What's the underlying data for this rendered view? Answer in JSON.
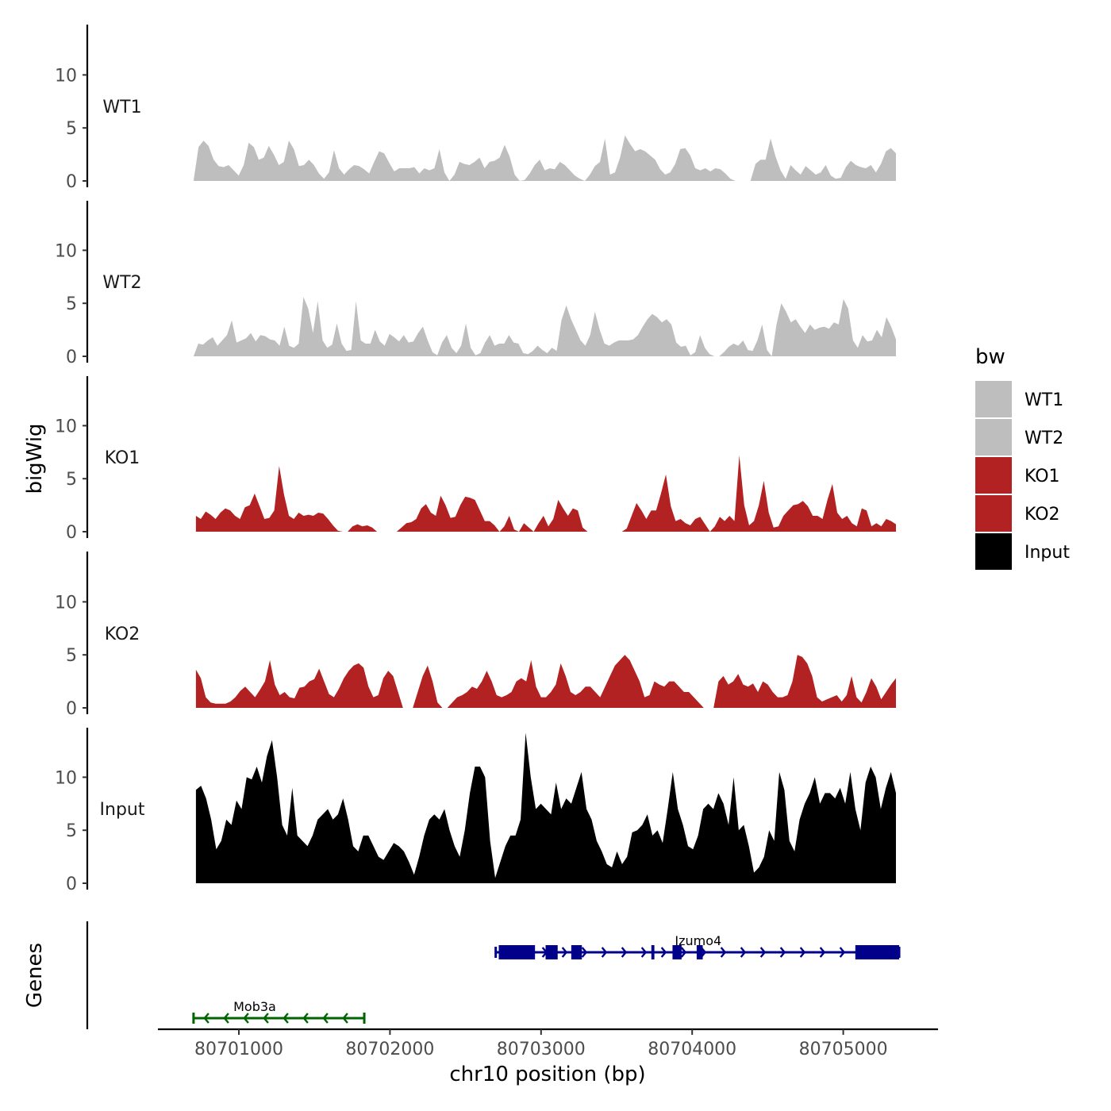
{
  "chart_data": {
    "type": "area",
    "title": "",
    "ylabel": "bigWig",
    "genes_label": "Genes",
    "xlabel": "chr10 position (bp)",
    "x_range": [
      80700700,
      80705370
    ],
    "xlim": [
      80700500,
      80705650
    ],
    "x_ticks": [
      80701000,
      80702000,
      80703000,
      80704000,
      80705000
    ],
    "x_tick_labels": [
      "80701000",
      "80702000",
      "80703000",
      "80704000",
      "80705000"
    ],
    "ylim": [
      0,
      14.6
    ],
    "y_ticks": [
      0,
      5,
      10
    ],
    "y_tick_labels": [
      "0",
      "5",
      "10"
    ],
    "legend": {
      "title": "bw",
      "position": "right",
      "entries": [
        {
          "name": "WT1",
          "color": "#bebebe"
        },
        {
          "name": "WT2",
          "color": "#bebebe"
        },
        {
          "name": "KO1",
          "color": "#b22222"
        },
        {
          "name": "KO2",
          "color": "#b22222"
        },
        {
          "name": "Input",
          "color": "#000000"
        }
      ]
    },
    "series": [
      {
        "name": "WT1",
        "color": "#bebebe",
        "values": [
          0,
          3.2,
          3.8,
          3.3,
          2.0,
          1.4,
          1.3,
          1.5,
          1.0,
          0.5,
          1.5,
          3.6,
          3.2,
          2.0,
          2.2,
          3.3,
          2.5,
          1.5,
          1.8,
          3.8,
          3.0,
          1.4,
          1.5,
          2.0,
          1.5,
          0.7,
          0.2,
          0.8,
          2.9,
          1.2,
          0.6,
          1.1,
          1.5,
          1.4,
          1.1,
          0.7,
          1.8,
          2.8,
          2.6,
          1.7,
          0.9,
          1.2,
          1.2,
          1.2,
          1.3,
          0.7,
          1.2,
          1.0,
          1.2,
          3.0,
          0.8,
          0.0,
          0.6,
          1.8,
          1.6,
          1.5,
          1.8,
          2.2,
          1.2,
          1.8,
          1.9,
          2.2,
          3.4,
          2.3,
          0.6,
          0.0,
          0.1,
          0.7,
          1.5,
          2.0,
          1.0,
          1.2,
          1.1,
          1.8,
          1.5,
          1.0,
          0.5,
          0.2,
          0.0,
          0.6,
          1.4,
          1.8,
          4.0,
          0.6,
          0.8,
          2.2,
          4.3,
          3.5,
          2.8,
          3.0,
          2.8,
          2.4,
          2.0,
          1.1,
          0.6,
          0.8,
          1.6,
          3.0,
          3.1,
          2.4,
          1.2,
          1.0,
          1.2,
          0.9,
          1.2,
          1.1,
          0.7,
          0.2,
          0.0,
          0.0,
          0.0,
          0.0,
          1.6,
          2.0,
          2.0,
          4.0,
          2.3,
          1.0,
          0.2,
          1.5,
          1.0,
          0.6,
          1.4,
          1.0,
          0.6,
          0.8,
          1.5,
          0.5,
          0.2,
          0.3,
          1.3,
          1.9,
          1.5,
          1.3,
          1.2,
          1.5,
          0.8,
          1.6,
          2.8,
          3.1,
          2.6
        ]
      },
      {
        "name": "WT2",
        "color": "#bebebe",
        "values": [
          0,
          1.2,
          1.1,
          1.5,
          1.8,
          1.0,
          1.5,
          2.0,
          3.4,
          1.3,
          1.5,
          1.7,
          2.2,
          1.4,
          2.0,
          1.9,
          1.6,
          1.5,
          1.0,
          2.8,
          1.0,
          0.8,
          1.2,
          5.6,
          4.5,
          2.2,
          5.2,
          1.5,
          0.8,
          1.1,
          3.1,
          1.2,
          0.5,
          0.6,
          5.2,
          1.5,
          1.2,
          1.2,
          2.5,
          1.4,
          1.0,
          2.1,
          1.8,
          1.4,
          2.0,
          1.3,
          1.4,
          2.2,
          2.8,
          1.5,
          0.4,
          0.1,
          1.3,
          2.0,
          0.8,
          0.3,
          1.0,
          3.1,
          0.8,
          0.1,
          0.3,
          1.3,
          2.0,
          1.0,
          1.2,
          1.2,
          2.0,
          1.3,
          1.2,
          0.3,
          0.2,
          0.5,
          1.0,
          0.6,
          0.3,
          0.8,
          0.5,
          3.4,
          4.8,
          3.5,
          2.5,
          1.5,
          1.0,
          2.0,
          4.2,
          2.5,
          1.2,
          1.0,
          1.3,
          1.5,
          1.5,
          1.5,
          1.6,
          2.0,
          2.8,
          3.5,
          4.0,
          3.7,
          3.2,
          3.5,
          3.0,
          1.3,
          0.9,
          1.0,
          0.1,
          0.4,
          2.0,
          0.8,
          0.2,
          0.0,
          0.0,
          0.4,
          0.9,
          1.2,
          1.0,
          1.5,
          0.6,
          0.5,
          1.5,
          3.0,
          0.6,
          0.0,
          3.0,
          5.0,
          4.2,
          3.2,
          3.5,
          2.8,
          2.2,
          3.0,
          2.5,
          2.7,
          2.8,
          2.6,
          3.2,
          3.0,
          5.4,
          4.5,
          1.5,
          0.8,
          2.0,
          1.4,
          1.5,
          2.5,
          1.8,
          3.7,
          2.8,
          1.6
        ]
      },
      {
        "name": "KO1",
        "color": "#b22222",
        "values": [
          1.5,
          1.2,
          1.9,
          1.6,
          1.2,
          1.8,
          2.2,
          2.0,
          1.5,
          1.2,
          2.3,
          2.5,
          3.6,
          2.4,
          1.2,
          1.3,
          2.0,
          6.2,
          3.5,
          1.5,
          1.2,
          1.8,
          1.5,
          1.6,
          1.5,
          1.8,
          1.7,
          1.2,
          0.6,
          0.1,
          0.0,
          0.0,
          0.5,
          0.7,
          0.5,
          0.6,
          0.4,
          0.0,
          0.0,
          0.0,
          0.0,
          0.0,
          0.4,
          0.8,
          0.9,
          1.2,
          2.2,
          2.6,
          1.8,
          1.5,
          3.4,
          2.5,
          1.3,
          1.4,
          2.5,
          3.3,
          3.2,
          3.0,
          2.0,
          1.0,
          1.0,
          0.6,
          0.0,
          0.5,
          1.5,
          0.2,
          0.0,
          0.8,
          0.4,
          0.0,
          0.8,
          1.5,
          0.5,
          1.2,
          3.0,
          2.2,
          1.5,
          2.2,
          2.0,
          0.4,
          0.0,
          0.0,
          0.0,
          0.0,
          0.0,
          0.0,
          0.0,
          0.0,
          0.3,
          1.5,
          2.7,
          2.0,
          1.2,
          2.0,
          2.0,
          3.6,
          5.4,
          2.4,
          1.0,
          1.2,
          0.8,
          0.6,
          1.2,
          1.4,
          0.7,
          0.0,
          0.5,
          1.4,
          1.0,
          1.5,
          1.0,
          7.2,
          2.5,
          0.6,
          1.0,
          2.5,
          4.8,
          1.8,
          0.4,
          0.5,
          1.5,
          2.0,
          2.5,
          2.6,
          2.9,
          2.4,
          1.5,
          1.5,
          1.2,
          3.0,
          4.5,
          1.8,
          1.2,
          1.5,
          0.8,
          0.5,
          2.2,
          2.0,
          0.5,
          0.8,
          0.5,
          1.2,
          1.0,
          0.7
        ]
      },
      {
        "name": "KO2",
        "color": "#b22222",
        "values": [
          3.6,
          2.8,
          1.0,
          0.5,
          0.4,
          0.4,
          0.4,
          0.6,
          1.0,
          1.6,
          2.0,
          1.5,
          1.0,
          1.7,
          2.5,
          4.5,
          2.2,
          1.2,
          1.5,
          1.0,
          0.9,
          1.9,
          2.0,
          2.5,
          2.7,
          3.7,
          2.5,
          1.3,
          1.0,
          1.8,
          2.8,
          3.5,
          4.0,
          4.2,
          3.8,
          2.0,
          1.0,
          1.2,
          2.8,
          3.5,
          3.0,
          1.5,
          0.0,
          0.0,
          0.0,
          1.5,
          3.0,
          4.0,
          2.5,
          0.5,
          0.0,
          0.0,
          0.5,
          1.0,
          1.2,
          1.5,
          2.0,
          1.8,
          2.5,
          3.5,
          2.5,
          1.2,
          1.0,
          1.2,
          1.5,
          2.5,
          2.8,
          2.5,
          4.5,
          2.0,
          1.0,
          1.0,
          1.5,
          2.2,
          4.2,
          3.0,
          1.5,
          1.2,
          1.5,
          2.0,
          2.0,
          1.5,
          1.0,
          2.0,
          3.0,
          4.0,
          4.5,
          5.0,
          4.5,
          3.5,
          2.5,
          1.0,
          1.2,
          2.5,
          2.2,
          2.0,
          2.5,
          2.5,
          2.0,
          1.5,
          1.5,
          1.0,
          0.5,
          0.0,
          0.0,
          0.0,
          2.5,
          3.0,
          2.2,
          2.5,
          3.2,
          2.2,
          2.0,
          2.3,
          1.5,
          2.5,
          2.2,
          1.5,
          1.0,
          1.0,
          1.2,
          2.5,
          5.0,
          4.8,
          4.2,
          3.0,
          1.0,
          0.6,
          0.8,
          1.0,
          1.2,
          0.6,
          1.2,
          3.0,
          1.0,
          0.5,
          1.5,
          2.8,
          2.0,
          0.8,
          1.5,
          2.2,
          2.8
        ]
      },
      {
        "name": "Input",
        "color": "#000000",
        "values": [
          8.8,
          9.2,
          8.0,
          6.0,
          3.2,
          4.0,
          6.0,
          5.5,
          7.8,
          7.0,
          10.0,
          9.8,
          11.0,
          9.5,
          12.0,
          13.5,
          10.0,
          5.5,
          4.5,
          9.0,
          4.5,
          4.0,
          3.5,
          4.5,
          6.0,
          6.5,
          7.0,
          6.0,
          6.5,
          8.0,
          6.0,
          3.5,
          3.0,
          4.5,
          4.5,
          3.5,
          2.5,
          2.2,
          3.0,
          3.8,
          3.5,
          3.0,
          2.0,
          0.8,
          2.5,
          4.5,
          6.0,
          6.5,
          6.0,
          7.0,
          5.0,
          3.5,
          2.5,
          5.0,
          8.5,
          11.0,
          11.0,
          10.0,
          4.0,
          0.5,
          2.0,
          3.5,
          4.5,
          4.5,
          6.0,
          14.2,
          10.0,
          7.0,
          7.5,
          7.0,
          6.5,
          9.5,
          7.0,
          8.0,
          7.5,
          9.0,
          10.5,
          7.0,
          6.0,
          4.0,
          3.0,
          1.8,
          1.5,
          3.0,
          1.8,
          2.5,
          4.8,
          5.0,
          5.5,
          6.5,
          4.5,
          5.0,
          3.8,
          7.0,
          10.5,
          7.0,
          5.5,
          3.5,
          3.2,
          4.5,
          7.0,
          7.5,
          7.0,
          8.5,
          7.5,
          5.5,
          10.0,
          5.0,
          5.5,
          3.5,
          1.0,
          1.5,
          2.5,
          5.0,
          4.0,
          10.5,
          8.8,
          4.0,
          3.0,
          6.0,
          7.5,
          8.5,
          10.0,
          7.5,
          8.5,
          8.5,
          8.0,
          9.0,
          7.5,
          10.5,
          7.0,
          5.0,
          9.5,
          11.0,
          10.0,
          7.0,
          9.0,
          10.5,
          8.5
        ]
      }
    ],
    "genes": [
      {
        "name": "Mob3a",
        "strand": "-",
        "color": "#006400",
        "start": 80700700,
        "end": 80701830,
        "exons": []
      },
      {
        "name": "Izumo4",
        "strand": "+",
        "color": "#00008b",
        "start": 80702700,
        "end": 80705370,
        "exons": [
          [
            80702720,
            80702960
          ],
          [
            80703030,
            80703110
          ],
          [
            80703200,
            80703270
          ],
          [
            80703730,
            80703750
          ],
          [
            80703870,
            80703930
          ],
          [
            80704030,
            80704070
          ],
          [
            80705080,
            80705370
          ]
        ]
      }
    ]
  }
}
